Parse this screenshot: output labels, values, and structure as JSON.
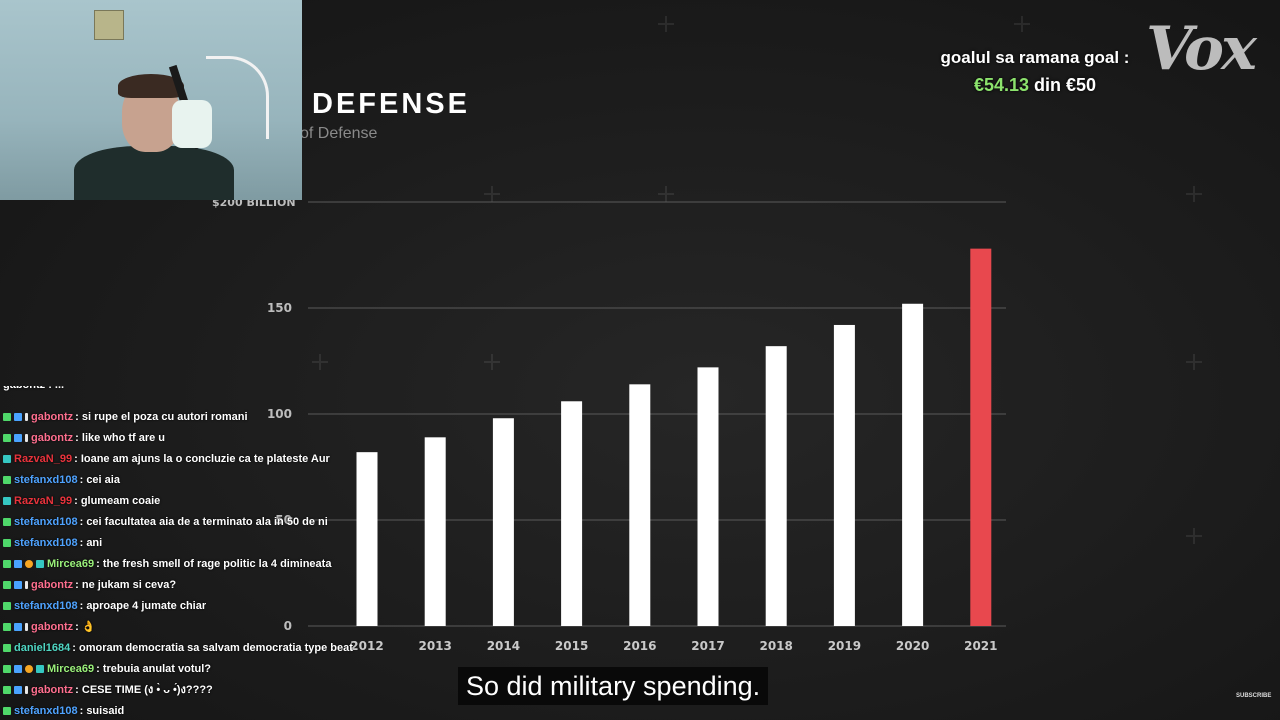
{
  "chart_title": "DEFENSE",
  "chart_subtitle": "of Defense",
  "chart_data": {
    "type": "bar",
    "categories": [
      "2012",
      "2013",
      "2014",
      "2015",
      "2016",
      "2017",
      "2018",
      "2019",
      "2020",
      "2021"
    ],
    "values": [
      82,
      89,
      98,
      106,
      114,
      122,
      132,
      142,
      152,
      178
    ],
    "y_ticks": [
      0,
      50,
      100,
      150,
      200
    ],
    "y_tick_labels": [
      "0",
      "50",
      "100",
      "150",
      "$200 BILLION"
    ],
    "ylim": [
      0,
      200
    ],
    "bar_colors": [
      "#ffffff",
      "#ffffff",
      "#ffffff",
      "#ffffff",
      "#ffffff",
      "#ffffff",
      "#ffffff",
      "#ffffff",
      "#ffffff",
      "#e8484e"
    ],
    "grid": true
  },
  "goal": {
    "text": "goalul sa ramana goal :",
    "amount": "€54.13",
    "separator": " din ",
    "target": "€50"
  },
  "brand_logo": "Vox",
  "chat": {
    "top_partial": "gabontz : ...",
    "messages": [
      {
        "badges": [
          "mod",
          "box",
          "sub"
        ],
        "user": "gabontz",
        "user_color": "#ff6f8f",
        "text": "si rupe el poza cu autori romani"
      },
      {
        "badges": [
          "mod",
          "box",
          "sub"
        ],
        "user": "gabontz",
        "user_color": "#ff6f8f",
        "text": "like who tf are u"
      },
      {
        "badges": [
          "mod2"
        ],
        "user": "RazvaN_99",
        "user_color": "#e8333c",
        "text": "Ioane am ajuns la o concluzie ca te plateste Aur"
      },
      {
        "badges": [
          "mod"
        ],
        "user": "stefanxd108",
        "user_color": "#4fa3ff",
        "text": "cei aia"
      },
      {
        "badges": [
          "mod2"
        ],
        "user": "RazvaN_99",
        "user_color": "#e8333c",
        "text": "glumeam coaie"
      },
      {
        "badges": [
          "mod"
        ],
        "user": "stefanxd108",
        "user_color": "#4fa3ff",
        "text": "cei facultatea aia de a terminato ala in 50 de ni"
      },
      {
        "badges": [
          "mod"
        ],
        "user": "stefanxd108",
        "user_color": "#4fa3ff",
        "text": "ani"
      },
      {
        "badges": [
          "mod",
          "box",
          "coin",
          "mod2"
        ],
        "user": "Mircea69",
        "user_color": "#9af07a",
        "text": "the fresh smell of rage politic la 4 dimineata"
      },
      {
        "badges": [
          "mod",
          "box",
          "sub"
        ],
        "user": "gabontz",
        "user_color": "#ff6f8f",
        "text": "ne jukam si ceva?"
      },
      {
        "badges": [
          "mod"
        ],
        "user": "stefanxd108",
        "user_color": "#4fa3ff",
        "text": "aproape 4 jumate chiar"
      },
      {
        "badges": [
          "mod",
          "box",
          "sub"
        ],
        "user": "gabontz",
        "user_color": "#ff6f8f",
        "text": "👌"
      },
      {
        "badges": [
          "mod"
        ],
        "user": "daniel1684",
        "user_color": "#4fd6c3",
        "text": "omoram democratia sa salvam democratia type beat"
      },
      {
        "badges": [
          "mod",
          "box",
          "coin",
          "mod2"
        ],
        "user": "Mircea69",
        "user_color": "#9af07a",
        "text": "trebuia anulat votul?"
      },
      {
        "badges": [
          "mod",
          "box",
          "sub"
        ],
        "user": "gabontz",
        "user_color": "#ff6f8f",
        "text": "CESE TIME (ง •̀ ᴗ •́)ง????"
      },
      {
        "badges": [
          "mod"
        ],
        "user": "stefanxd108",
        "user_color": "#4fa3ff",
        "text": "suisaid"
      }
    ]
  },
  "caption": "So did military spending.",
  "subscribe_label": "SUBSCRIBE"
}
